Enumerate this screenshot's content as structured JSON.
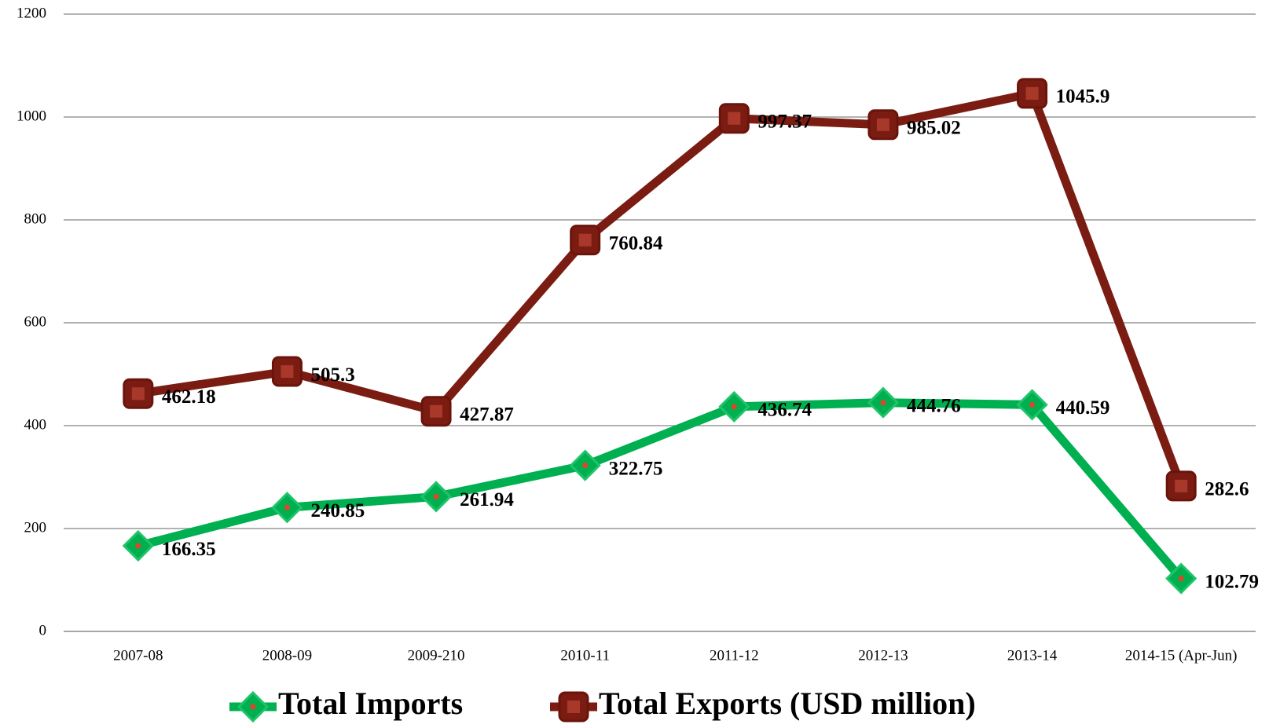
{
  "chart_data": {
    "type": "line",
    "categories": [
      "2007-08",
      "2008-09",
      "2009-210",
      "2010-11",
      "2011-12",
      "2012-13",
      "2013-14",
      "2014-15 (Apr-Jun)"
    ],
    "series": [
      {
        "name": "Total Imports",
        "color": "#00b050",
        "marker": "diamond",
        "values": [
          166.35,
          240.85,
          261.94,
          322.75,
          436.74,
          444.76,
          440.59,
          102.79
        ]
      },
      {
        "name": "Total Exports (USD million)",
        "color": "#7b1c12",
        "marker": "square",
        "values": [
          462.18,
          505.3,
          427.87,
          760.84,
          997.37,
          985.02,
          1045.9,
          282.6
        ]
      }
    ],
    "ylim": [
      0,
      1200
    ],
    "yticks": [
      0,
      200,
      400,
      600,
      800,
      1000,
      1200
    ],
    "grid": true,
    "legend": "bottom"
  }
}
